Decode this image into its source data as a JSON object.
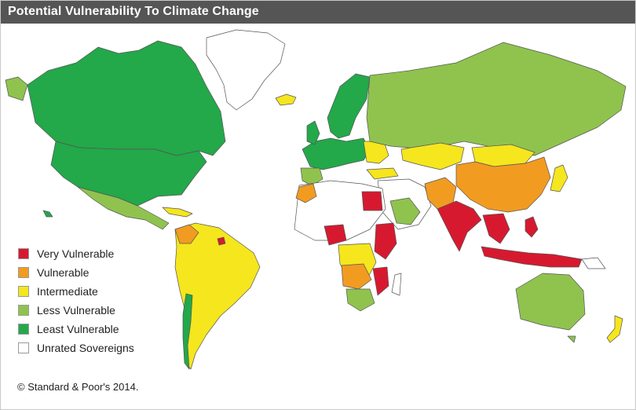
{
  "title": "Potential Vulnerability To Climate Change",
  "colors": {
    "very_vulnerable": "#d7192f",
    "vulnerable": "#f29b21",
    "intermediate": "#f5e61e",
    "less_vulnerable": "#8fc34e",
    "least_vulnerable": "#23a84a",
    "unrated": "#ffffff",
    "border": "#555555"
  },
  "legend": [
    {
      "label": "Very Vulnerable",
      "color": "#d7192f"
    },
    {
      "label": "Vulnerable",
      "color": "#f29b21"
    },
    {
      "label": "Intermediate",
      "color": "#f5e61e"
    },
    {
      "label": "Less Vulnerable",
      "color": "#8fc34e"
    },
    {
      "label": "Least Vulnerable",
      "color": "#23a84a"
    },
    {
      "label": "Unrated Sovereigns",
      "color": "#ffffff"
    }
  ],
  "copyright": "© Standard & Poor's 2014."
}
